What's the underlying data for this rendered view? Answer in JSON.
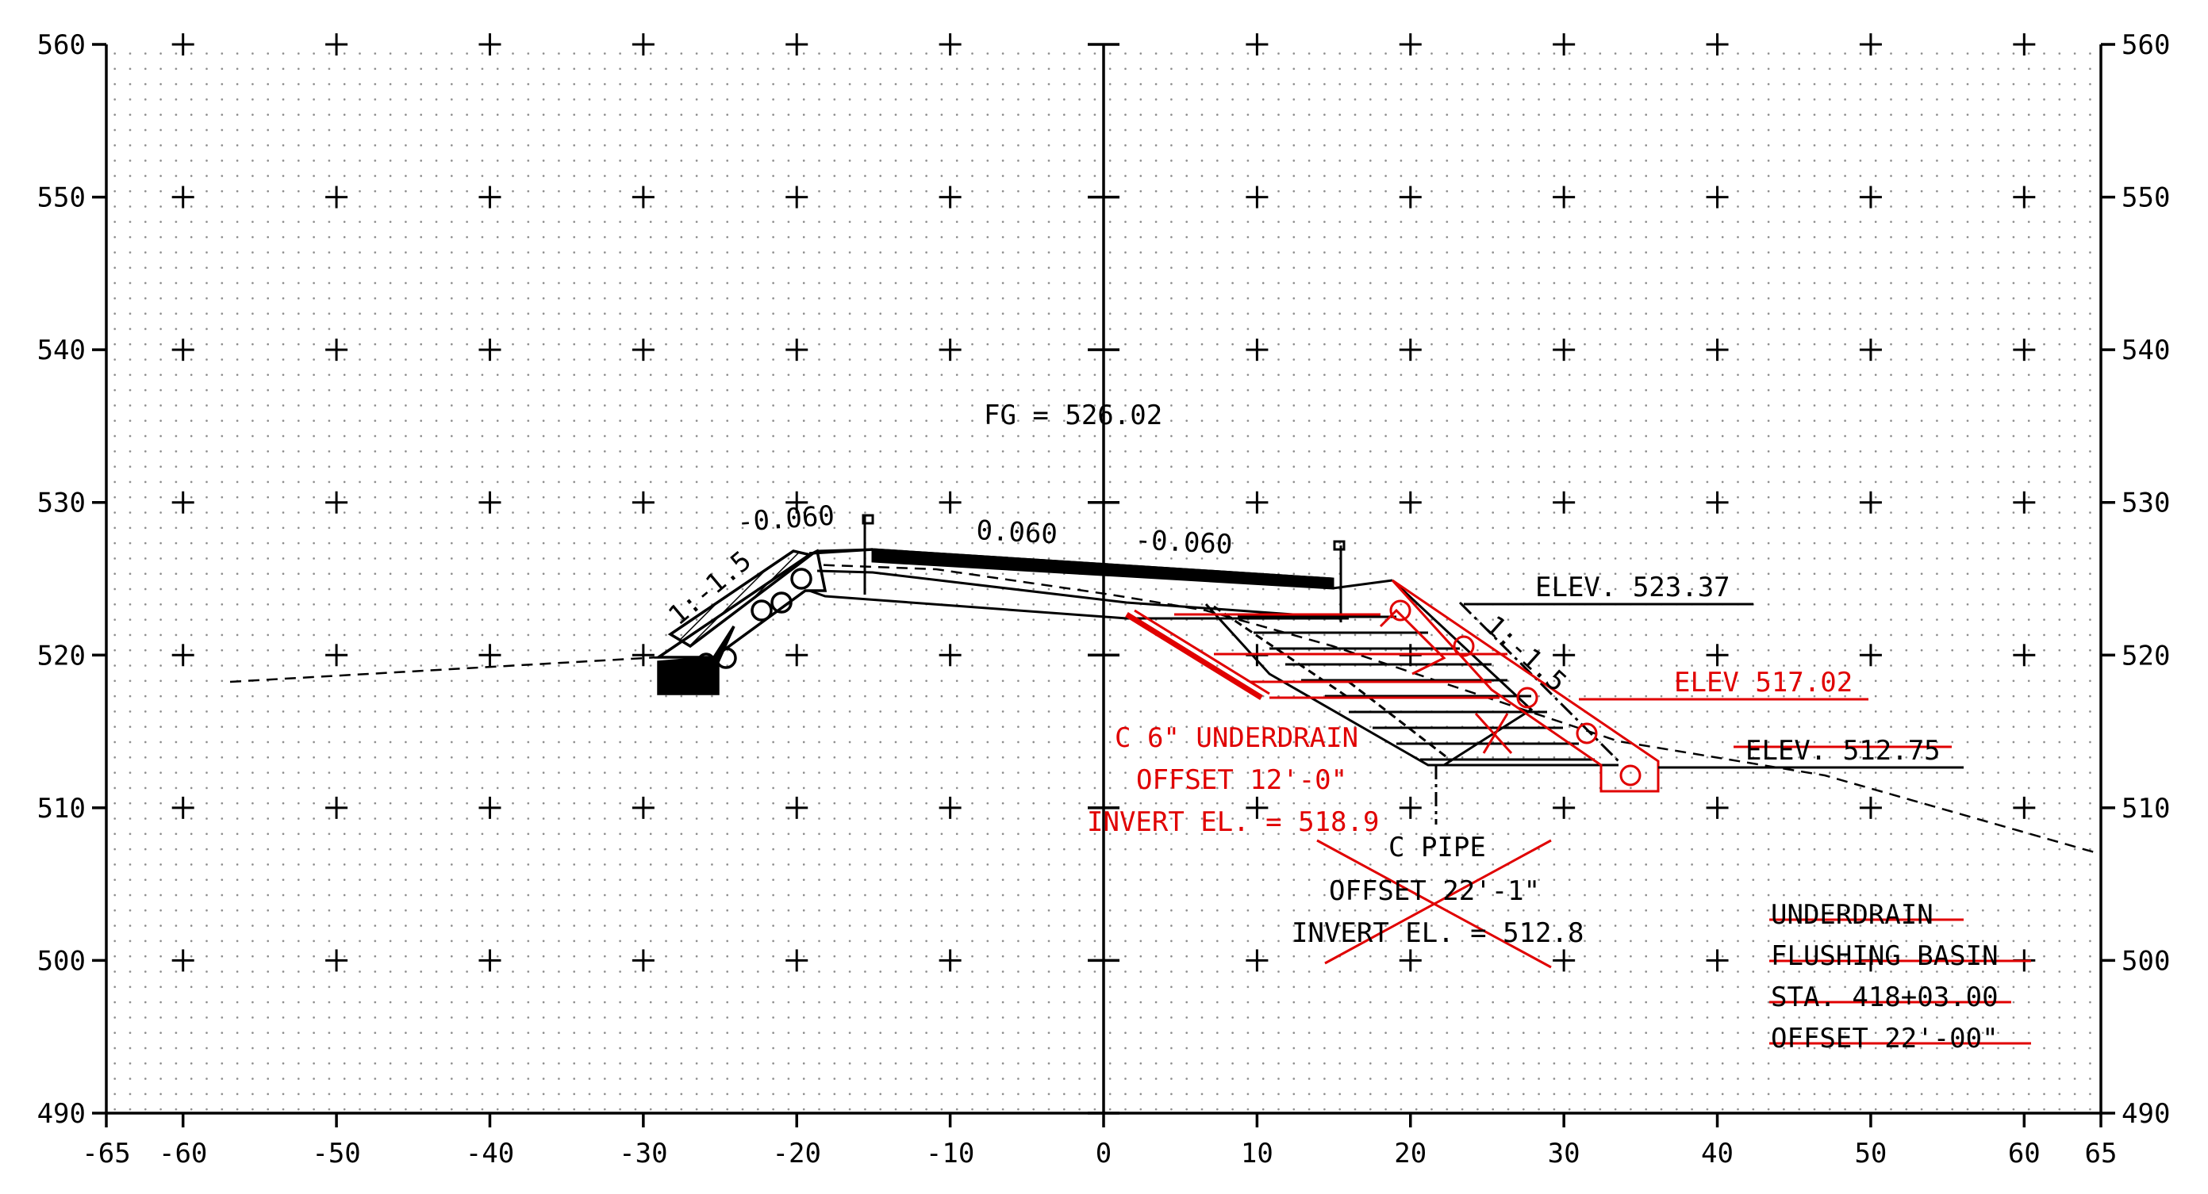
{
  "drawing": {
    "x_axis": {
      "range": [
        -65,
        65
      ],
      "ticks": [
        -65,
        -60,
        -50,
        -40,
        -30,
        -20,
        -10,
        0,
        10,
        20,
        30,
        40,
        50,
        60,
        65
      ],
      "tick_labels": [
        "-65",
        "-60",
        "-50",
        "-40",
        "-30",
        "-20",
        "-10",
        "0",
        "10",
        "20",
        "30",
        "40",
        "50",
        "60",
        "65"
      ]
    },
    "y_axis": {
      "range": [
        490,
        560
      ],
      "ticks": [
        490,
        500,
        510,
        520,
        530,
        540,
        550,
        560
      ],
      "tick_labels": [
        "490",
        "500",
        "510",
        "520",
        "530",
        "540",
        "550",
        "560"
      ]
    },
    "grid": "dotted",
    "colors": {
      "ink": "#000000",
      "markup": "#e00000"
    }
  },
  "annotations": {
    "finished_grade": "FG   = 526.02",
    "slope_left_outer": "-0.060",
    "slope_center_left": "0.060",
    "slope_center_right": "-0.060",
    "side_slope_left": "1:-1.5",
    "side_slope_right": "1:-1.5",
    "elev_top": "ELEV. 523.37",
    "elev_red": "ELEV 517.02",
    "elev_bottom": "ELEV. 512.75"
  },
  "red_callout": {
    "line1": "C 6\" UNDERDRAIN",
    "line2": "OFFSET 12'-0\"",
    "line3": "INVERT EL. = 518.9"
  },
  "pipe_callout": {
    "line1": "C PIPE",
    "line2": "OFFSET 22'-1\"",
    "line3": "INVERT EL. = 512.8"
  },
  "struck_note": {
    "line1": "UNDERDRAIN",
    "line2": "FLUSHING BASIN",
    "line3": "STA. 418+03.00",
    "line4": "OFFSET 22'-00\""
  }
}
